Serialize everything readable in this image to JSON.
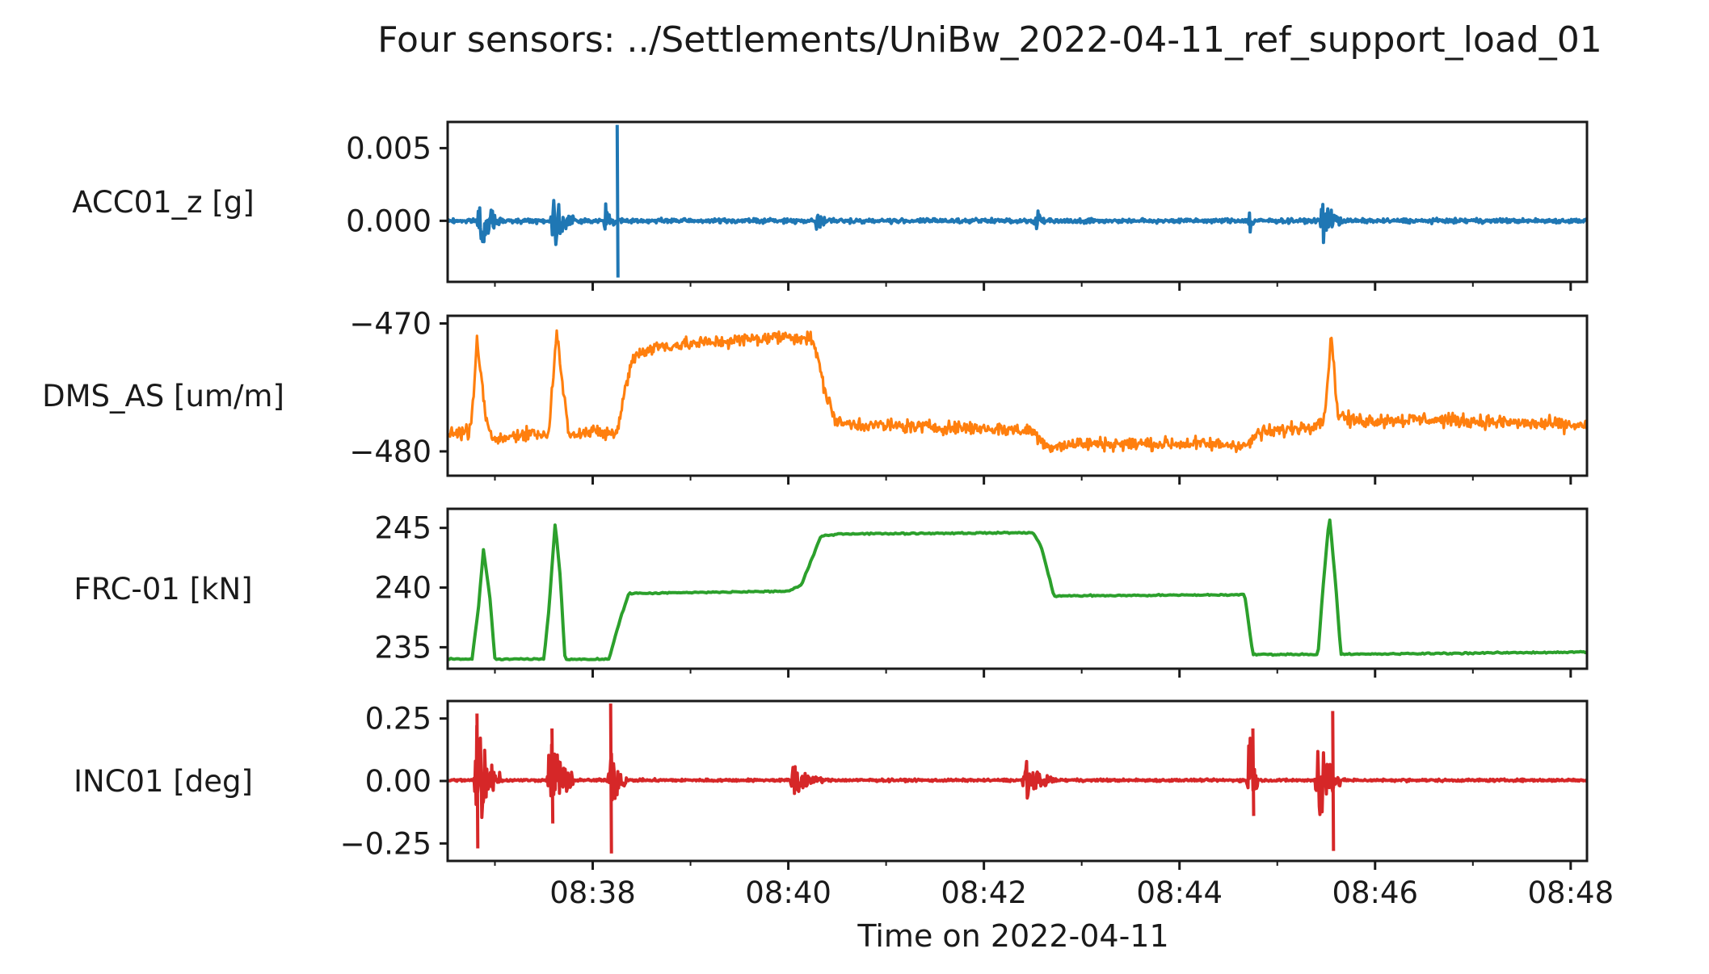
{
  "chart_data": {
    "type": "line",
    "title": "Four sensors: ../Settlements/UniBw_2022-04-11_ref_support_load_01",
    "xlabel": "Time on 2022-04-11",
    "x_ticks": [
      "08:38",
      "08:40",
      "08:42",
      "08:44",
      "08:46",
      "08:48"
    ],
    "xlim": [
      "08:36:31",
      "08:48:10"
    ],
    "grid": false,
    "legend": "none",
    "panels": [
      {
        "ylabel": "ACC01_z [g]",
        "color": "#1f77b4",
        "ylim": [
          -0.0042,
          0.0068
        ],
        "y_ticks": [
          0.005,
          0.0
        ],
        "y_tick_labels": [
          "0.005",
          "0.000"
        ],
        "signal": {
          "style": "bursty",
          "base": 0.0,
          "noise": 0.00012,
          "bursts": [
            {
              "t": "08:36:51",
              "dur_s": 12,
              "amp": 0.0024
            },
            {
              "t": "08:37:36",
              "dur_s": 12,
              "amp": 0.0022
            },
            {
              "t": "08:38:08",
              "dur_s": 6,
              "amp": 0.0012
            },
            {
              "t": "08:40:18",
              "dur_s": 6,
              "amp": 0.001
            },
            {
              "t": "08:42:32",
              "dur_s": 6,
              "amp": 0.001
            },
            {
              "t": "08:44:43",
              "dur_s": 5,
              "amp": 0.001
            },
            {
              "t": "08:45:28",
              "dur_s": 12,
              "amp": 0.0018
            }
          ],
          "spikes": [
            {
              "t": "08:38:15",
              "min": -0.0039,
              "max": 0.0066
            }
          ]
        }
      },
      {
        "ylabel": "DMS_AS [um/m]",
        "color": "#ff7f0e",
        "ylim": [
          -481.9,
          -469.4
        ],
        "y_ticks": [
          -470,
          -480
        ],
        "y_tick_labels": [
          "−470",
          "−480"
        ],
        "signal": {
          "style": "noisy",
          "noise": 0.45,
          "points": [
            [
              "08:36:31",
              -478.6
            ],
            [
              "08:36:44",
              -478.5
            ],
            [
              "08:36:47",
              -476.0
            ],
            [
              "08:36:49",
              -471.5
            ],
            [
              "08:36:51",
              -473.5
            ],
            [
              "08:36:55",
              -478.0
            ],
            [
              "08:37:00",
              -479.2
            ],
            [
              "08:37:20",
              -478.5
            ],
            [
              "08:37:33",
              -478.8
            ],
            [
              "08:37:35",
              -475.0
            ],
            [
              "08:37:38",
              -470.8
            ],
            [
              "08:37:41",
              -474.0
            ],
            [
              "08:37:45",
              -478.5
            ],
            [
              "08:38:15",
              -478.6
            ],
            [
              "08:38:20",
              -475.0
            ],
            [
              "08:38:25",
              -472.5
            ],
            [
              "08:38:40",
              -471.8
            ],
            [
              "08:39:00",
              -471.6
            ],
            [
              "08:39:30",
              -471.3
            ],
            [
              "08:40:00",
              -471.0
            ],
            [
              "08:40:15",
              -471.2
            ],
            [
              "08:40:23",
              -475.5
            ],
            [
              "08:40:30",
              -477.8
            ],
            [
              "08:41:00",
              -478.0
            ],
            [
              "08:42:00",
              -478.2
            ],
            [
              "08:42:30",
              -478.4
            ],
            [
              "08:42:38",
              -479.6
            ],
            [
              "08:43:00",
              -479.4
            ],
            [
              "08:44:00",
              -479.4
            ],
            [
              "08:44:43",
              -479.5
            ],
            [
              "08:44:47",
              -478.6
            ],
            [
              "08:45:00",
              -478.4
            ],
            [
              "08:45:20",
              -478.0
            ],
            [
              "08:45:29",
              -477.5
            ],
            [
              "08:45:33",
              -470.8
            ],
            [
              "08:45:37",
              -477.0
            ],
            [
              "08:45:45",
              -477.6
            ],
            [
              "08:46:30",
              -477.5
            ],
            [
              "08:47:30",
              -477.8
            ],
            [
              "08:48:10",
              -478.0
            ]
          ]
        }
      },
      {
        "ylabel": "FRC-01 [kN]",
        "color": "#2ca02c",
        "ylim": [
          233.2,
          246.6
        ],
        "y_ticks": [
          245,
          240,
          235
        ],
        "y_tick_labels": [
          "245",
          "240",
          "235"
        ],
        "signal": {
          "style": "smooth",
          "noise": 0.05,
          "points": [
            [
              "08:36:31",
              234.0
            ],
            [
              "08:36:46",
              234.0
            ],
            [
              "08:36:50",
              238.5
            ],
            [
              "08:36:53",
              243.2
            ],
            [
              "08:36:57",
              239.0
            ],
            [
              "08:37:00",
              234.0
            ],
            [
              "08:37:30",
              234.0
            ],
            [
              "08:37:33",
              238.0
            ],
            [
              "08:37:37",
              245.4
            ],
            [
              "08:37:40",
              241.0
            ],
            [
              "08:37:43",
              234.0
            ],
            [
              "08:38:10",
              234.0
            ],
            [
              "08:38:15",
              236.5
            ],
            [
              "08:38:22",
              239.5
            ],
            [
              "08:40:00",
              239.7
            ],
            [
              "08:40:08",
              240.2
            ],
            [
              "08:40:20",
              244.3
            ],
            [
              "08:40:30",
              244.5
            ],
            [
              "08:42:30",
              244.6
            ],
            [
              "08:42:35",
              243.5
            ],
            [
              "08:42:43",
              239.3
            ],
            [
              "08:44:40",
              239.4
            ],
            [
              "08:44:45",
              234.4
            ],
            [
              "08:45:25",
              234.4
            ],
            [
              "08:45:28",
              240.0
            ],
            [
              "08:45:32",
              246.0
            ],
            [
              "08:45:36",
              240.0
            ],
            [
              "08:45:39",
              234.4
            ],
            [
              "08:48:10",
              234.6
            ]
          ]
        }
      },
      {
        "ylabel": "INC01 [deg]",
        "color": "#d62728",
        "ylim": [
          -0.32,
          0.32
        ],
        "y_ticks": [
          0.25,
          0.0,
          -0.25
        ],
        "y_tick_labels": [
          "0.25",
          "0.00",
          "−0.25"
        ],
        "signal": {
          "style": "bursty",
          "base": 0.003,
          "noise": 0.004,
          "bursts": [
            {
              "t": "08:36:49",
              "dur_s": 14,
              "amp": 0.26
            },
            {
              "t": "08:37:34",
              "dur_s": 14,
              "amp": 0.22
            },
            {
              "t": "08:38:11",
              "dur_s": 10,
              "amp": 0.14
            },
            {
              "t": "08:40:03",
              "dur_s": 18,
              "amp": 0.07
            },
            {
              "t": "08:42:25",
              "dur_s": 18,
              "amp": 0.09
            },
            {
              "t": "08:44:43",
              "dur_s": 6,
              "amp": 0.2
            },
            {
              "t": "08:45:25",
              "dur_s": 14,
              "amp": 0.22
            }
          ],
          "spikes": [
            {
              "t": "08:36:49",
              "min": -0.27,
              "max": 0.27
            },
            {
              "t": "08:37:35",
              "min": -0.17,
              "max": 0.21
            },
            {
              "t": "08:38:11",
              "min": -0.29,
              "max": 0.31
            },
            {
              "t": "08:44:45",
              "min": -0.14,
              "max": 0.21
            },
            {
              "t": "08:45:34",
              "min": -0.28,
              "max": 0.28
            }
          ]
        }
      }
    ]
  }
}
